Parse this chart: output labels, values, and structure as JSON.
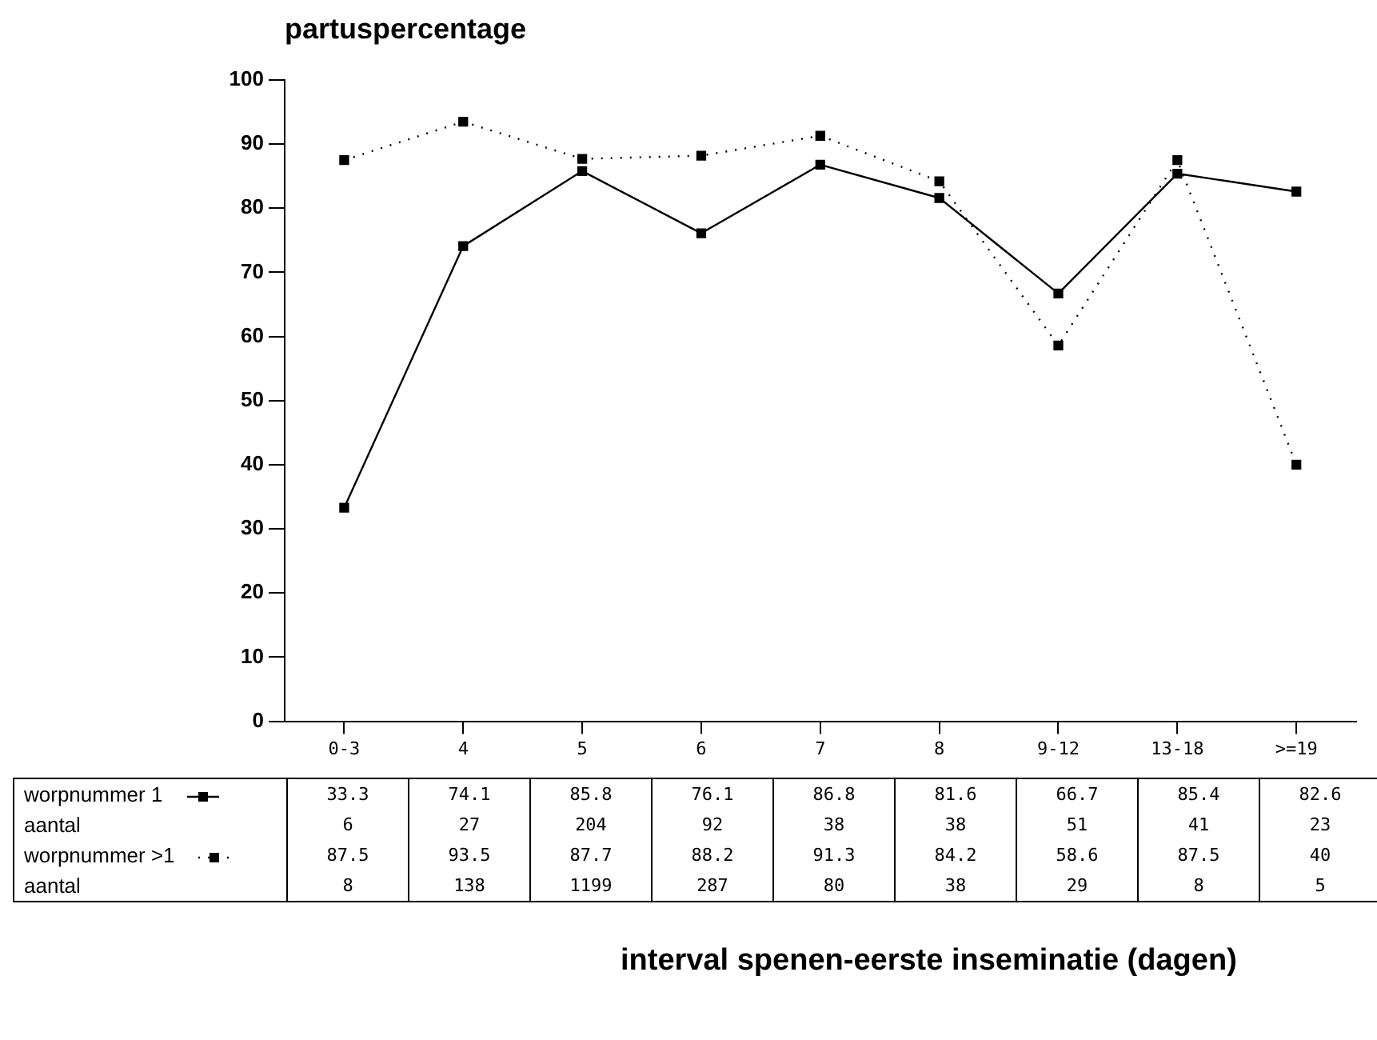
{
  "chart_data": {
    "type": "line",
    "ylabel": "partuspercentage",
    "categories": [
      "0-3",
      "4",
      "5",
      "6",
      "7",
      "8",
      "9-12",
      "13-18",
      ">=19"
    ],
    "series": [
      {
        "name": "worpnummer 1",
        "color": "#000000",
        "line_style": "solid",
        "values": [
          33.3,
          74.1,
          85.8,
          76.1,
          86.8,
          81.6,
          66.7,
          85.4,
          82.6
        ]
      },
      {
        "name": "worpnummer >1",
        "color": "#000000",
        "line_style": "dotted",
        "values": [
          87.5,
          93.5,
          87.7,
          88.2,
          91.3,
          84.2,
          58.6,
          87.5,
          40
        ]
      }
    ],
    "ylim": [
      0,
      100
    ],
    "yticks": [
      0,
      10,
      20,
      30,
      40,
      50,
      60,
      70,
      80,
      90,
      100
    ],
    "grid": false,
    "marker": "square",
    "legend": "bottom",
    "data_labels": true,
    "annotations": [
      "aantal",
      "6",
      "27",
      "204",
      "92",
      "38",
      "38",
      "51",
      "41",
      "23",
      "aantal",
      "8",
      "138",
      "1199",
      "287",
      "80",
      "38",
      "29",
      "8",
      "5",
      "interval spenen-eerste inseminatie (dagen)"
    ]
  }
}
